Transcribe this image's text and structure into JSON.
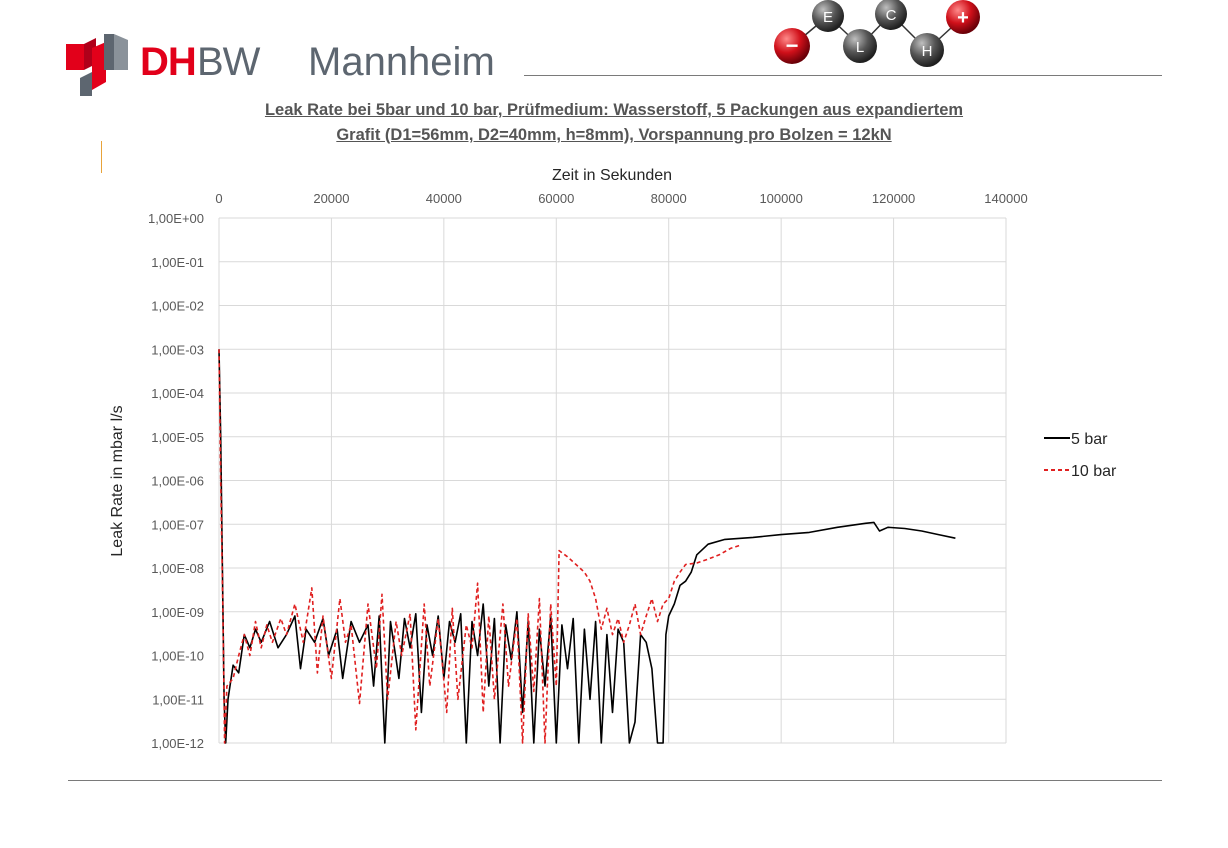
{
  "header": {
    "logo_dh": "DH",
    "logo_bw": "BW",
    "logo_city": "Mannheim",
    "molecule_atoms": [
      "E",
      "C",
      "L",
      "H"
    ],
    "minus_sign": "−",
    "plus_sign": "+"
  },
  "title_lines": [
    "Leak Rate bei 5bar und 10 bar, Prüfmedium: Wasserstoff, 5 Packungen aus expandiertem",
    "Grafit (D1=56mm, D2=40mm, h=8mm), Vorspannung pro Bolzen = 12kN"
  ],
  "colors": {
    "brand_red": "#e2001a",
    "brand_grey": "#5d6670",
    "series_5bar": "#000000",
    "series_10bar": "#e02020",
    "grid": "#d9d9d9"
  },
  "chart_data": {
    "type": "line",
    "xlabel": "Zeit in Sekunden",
    "ylabel": "Leak Rate in mbar l/s",
    "x_axis_position": "top",
    "xlim": [
      0,
      140000
    ],
    "ylim": [
      1e-12,
      1
    ],
    "yscale": "log",
    "grid": true,
    "legend_position": "right",
    "x_ticks": [
      "0",
      "20000",
      "40000",
      "60000",
      "80000",
      "100000",
      "120000",
      "140000"
    ],
    "y_ticks": [
      "1,00E+00",
      "1,00E-01",
      "1,00E-02",
      "1,00E-03",
      "1,00E-04",
      "1,00E-05",
      "1,00E-06",
      "1,00E-07",
      "1,00E-08",
      "1,00E-09",
      "1,00E-10",
      "1,00E-11",
      "1,00E-12"
    ],
    "series": [
      {
        "name": "5 bar",
        "line_style": "solid",
        "points": [
          [
            0,
            0.001
          ],
          [
            300,
            1e-05
          ],
          [
            600,
            1e-08
          ],
          [
            900,
            1e-11
          ],
          [
            1200,
            1e-12
          ],
          [
            1600,
            1e-11
          ],
          [
            2500,
            6e-11
          ],
          [
            3500,
            4e-11
          ],
          [
            4500,
            3e-10
          ],
          [
            5500,
            1.5e-10
          ],
          [
            6500,
            4e-10
          ],
          [
            7500,
            2e-10
          ],
          [
            9000,
            6e-10
          ],
          [
            10500,
            1.5e-10
          ],
          [
            12000,
            3e-10
          ],
          [
            13500,
            8e-10
          ],
          [
            14500,
            5e-11
          ],
          [
            15500,
            4e-10
          ],
          [
            17000,
            2e-10
          ],
          [
            18500,
            7e-10
          ],
          [
            19500,
            1e-10
          ],
          [
            21000,
            4e-10
          ],
          [
            22000,
            3e-11
          ],
          [
            23500,
            6e-10
          ],
          [
            25000,
            2e-10
          ],
          [
            26500,
            5e-10
          ],
          [
            27500,
            2e-11
          ],
          [
            28500,
            8e-10
          ],
          [
            29500,
            1e-12
          ],
          [
            30500,
            6e-10
          ],
          [
            32000,
            3e-11
          ],
          [
            33000,
            7e-10
          ],
          [
            34000,
            1.5e-10
          ],
          [
            35000,
            9e-10
          ],
          [
            36000,
            5e-12
          ],
          [
            37000,
            5e-10
          ],
          [
            38000,
            1e-10
          ],
          [
            39000,
            8e-10
          ],
          [
            40000,
            3e-11
          ],
          [
            41000,
            6e-10
          ],
          [
            42000,
            2e-10
          ],
          [
            43000,
            9e-10
          ],
          [
            44000,
            1e-12
          ],
          [
            45000,
            6e-10
          ],
          [
            46000,
            1e-10
          ],
          [
            47000,
            1.5e-09
          ],
          [
            48000,
            2e-11
          ],
          [
            49000,
            7e-10
          ],
          [
            50000,
            1e-12
          ],
          [
            51000,
            5e-10
          ],
          [
            52000,
            8e-11
          ],
          [
            53000,
            1e-09
          ],
          [
            54000,
            5e-12
          ],
          [
            55000,
            6e-10
          ],
          [
            56000,
            1e-12
          ],
          [
            57000,
            4e-10
          ],
          [
            58000,
            2e-11
          ],
          [
            59000,
            8e-10
          ],
          [
            60000,
            1e-12
          ],
          [
            61000,
            5e-10
          ],
          [
            62000,
            5e-11
          ],
          [
            63000,
            7e-10
          ],
          [
            64000,
            1e-12
          ],
          [
            65000,
            4e-10
          ],
          [
            66000,
            1e-11
          ],
          [
            67000,
            6e-10
          ],
          [
            68000,
            1e-12
          ],
          [
            69000,
            3e-10
          ],
          [
            70000,
            5e-12
          ],
          [
            71000,
            4e-10
          ],
          [
            72000,
            2e-10
          ],
          [
            73000,
            1e-12
          ],
          [
            74000,
            3e-12
          ],
          [
            75000,
            3e-10
          ],
          [
            76000,
            2e-10
          ],
          [
            77000,
            5e-11
          ],
          [
            78000,
            1e-12
          ],
          [
            79000,
            1e-12
          ],
          [
            79500,
            3e-10
          ],
          [
            80000,
            8e-10
          ],
          [
            81000,
            1.5e-09
          ],
          [
            82000,
            4e-09
          ],
          [
            83000,
            5e-09
          ],
          [
            84000,
            8e-09
          ],
          [
            85000,
            2e-08
          ],
          [
            87000,
            3.5e-08
          ],
          [
            90000,
            4.5e-08
          ],
          [
            95000,
            5e-08
          ],
          [
            100000,
            5.8e-08
          ],
          [
            105000,
            6.5e-08
          ],
          [
            110000,
            8.5e-08
          ],
          [
            115000,
            1.05e-07
          ],
          [
            116500,
            1.1e-07
          ],
          [
            117500,
            7e-08
          ],
          [
            119000,
            8.5e-08
          ],
          [
            122000,
            8e-08
          ],
          [
            125000,
            7e-08
          ],
          [
            128000,
            5.8e-08
          ],
          [
            131000,
            4.8e-08
          ]
        ]
      },
      {
        "name": "10 bar",
        "line_style": "dashed",
        "points": [
          [
            0,
            0.001
          ],
          [
            300,
            1e-06
          ],
          [
            700,
            1e-09
          ],
          [
            1000,
            1e-12
          ],
          [
            1400,
            2e-11
          ],
          [
            2500,
            3e-11
          ],
          [
            3500,
            1e-10
          ],
          [
            4500,
            3e-10
          ],
          [
            5500,
            1e-10
          ],
          [
            6500,
            6e-10
          ],
          [
            7500,
            1.5e-10
          ],
          [
            8500,
            5e-10
          ],
          [
            9500,
            2e-10
          ],
          [
            11000,
            7e-10
          ],
          [
            12000,
            3e-10
          ],
          [
            13500,
            1.5e-09
          ],
          [
            15000,
            2e-10
          ],
          [
            16500,
            3.5e-09
          ],
          [
            17500,
            4e-11
          ],
          [
            18500,
            8e-10
          ],
          [
            20000,
            3e-11
          ],
          [
            21500,
            2e-09
          ],
          [
            22500,
            2e-10
          ],
          [
            23500,
            5e-10
          ],
          [
            25000,
            8e-12
          ],
          [
            26500,
            1.5e-09
          ],
          [
            28000,
            5e-11
          ],
          [
            29000,
            2.5e-09
          ],
          [
            30000,
            1e-11
          ],
          [
            31500,
            6e-10
          ],
          [
            32500,
            1e-10
          ],
          [
            34000,
            9e-10
          ],
          [
            35000,
            2e-12
          ],
          [
            36500,
            1.5e-09
          ],
          [
            37500,
            2e-11
          ],
          [
            39000,
            7e-10
          ],
          [
            40500,
            5e-12
          ],
          [
            41500,
            1.2e-09
          ],
          [
            42500,
            1e-11
          ],
          [
            44000,
            5e-10
          ],
          [
            45000,
            1.5e-10
          ],
          [
            46000,
            4.5e-09
          ],
          [
            47000,
            5e-12
          ],
          [
            48000,
            8e-10
          ],
          [
            49000,
            1e-11
          ],
          [
            50500,
            1.5e-09
          ],
          [
            51500,
            2e-11
          ],
          [
            53000,
            7e-10
          ],
          [
            54000,
            1e-12
          ],
          [
            55000,
            9e-10
          ],
          [
            56000,
            1.5e-11
          ],
          [
            57000,
            2e-09
          ],
          [
            58000,
            1e-12
          ],
          [
            59000,
            1.5e-09
          ],
          [
            60000,
            2e-11
          ],
          [
            60500,
            2.5e-08
          ],
          [
            62000,
            1.8e-08
          ],
          [
            63500,
            1.2e-08
          ],
          [
            65000,
            8e-09
          ],
          [
            66000,
            5e-09
          ],
          [
            67000,
            2e-09
          ],
          [
            68000,
            4e-10
          ],
          [
            69000,
            1.2e-09
          ],
          [
            70000,
            3e-10
          ],
          [
            71000,
            7e-10
          ],
          [
            72000,
            2e-10
          ],
          [
            73000,
            5e-10
          ],
          [
            74000,
            1.5e-09
          ],
          [
            75000,
            3e-10
          ],
          [
            76000,
            8e-10
          ],
          [
            77000,
            2e-09
          ],
          [
            78000,
            6e-10
          ],
          [
            79000,
            1.5e-09
          ],
          [
            80000,
            2e-09
          ],
          [
            81000,
            5e-09
          ],
          [
            82000,
            8e-09
          ],
          [
            83000,
            1.2e-08
          ],
          [
            85000,
            1.3e-08
          ],
          [
            87000,
            1.6e-08
          ],
          [
            89000,
            2e-08
          ],
          [
            91000,
            2.8e-08
          ],
          [
            93000,
            3.4e-08
          ]
        ]
      }
    ]
  }
}
